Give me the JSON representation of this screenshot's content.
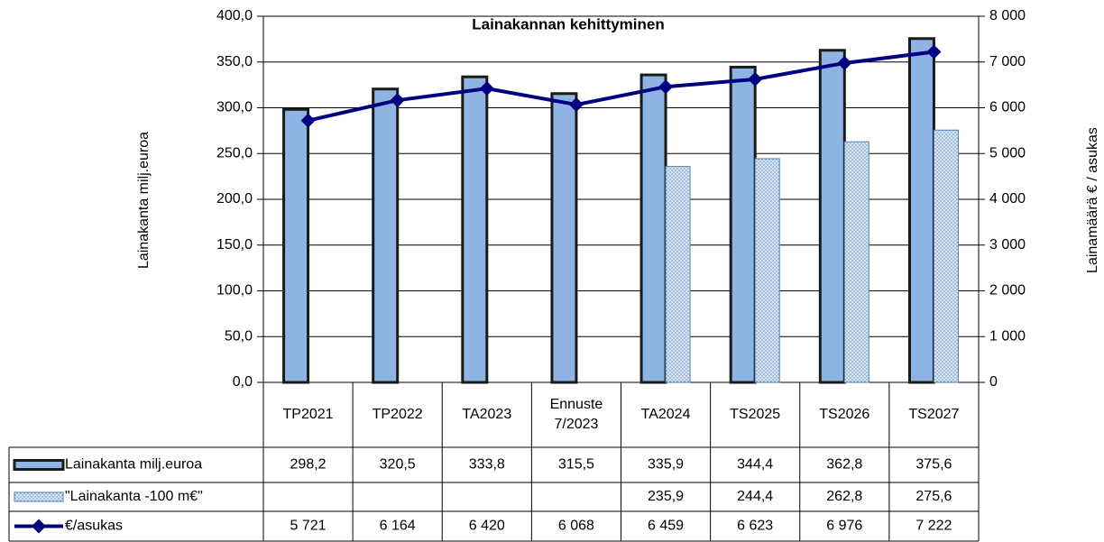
{
  "chart_data": {
    "type": "bar",
    "title": "Lainakannan kehittyminen",
    "y_label": "Lainakanta milj.euroa",
    "y2_label": "Lainamäärä € / asukas",
    "categories": [
      "TP2021",
      "TP2022",
      "TA2023",
      "Ennuste 7/2023",
      "TA2024",
      "TS2025",
      "TS2026",
      "TS2027"
    ],
    "series": [
      {
        "name": "Lainakanta milj.euroa",
        "type": "bar",
        "color": "#8db4e2",
        "values": [
          298.2,
          320.5,
          333.8,
          315.5,
          335.9,
          344.4,
          362.8,
          375.6
        ],
        "value_labels": [
          "298,2",
          "320,5",
          "333,8",
          "315,5",
          "335,9",
          "344,4",
          "362,8",
          "375,6"
        ]
      },
      {
        "name": "\"Lainakanta -100 m€\"",
        "type": "bar",
        "color": "#dbe5f1",
        "values": [
          null,
          null,
          null,
          null,
          235.9,
          244.4,
          262.8,
          275.6
        ],
        "value_labels": [
          null,
          null,
          null,
          null,
          "235,9",
          "244,4",
          "262,8",
          "275,6"
        ]
      },
      {
        "name": "€/asukas",
        "type": "line",
        "axis": "y2",
        "color": "#000080",
        "values": [
          5721,
          6164,
          6420,
          6068,
          6459,
          6623,
          6976,
          7222
        ],
        "value_labels": [
          "5 721",
          "6 164",
          "6 420",
          "6 068",
          "6 459",
          "6 623",
          "6 976",
          "7 222"
        ]
      }
    ],
    "ylim": [
      0,
      400
    ],
    "yticks": [
      {
        "value": 0,
        "label": "0,0"
      },
      {
        "value": 50,
        "label": "50,0"
      },
      {
        "value": 100,
        "label": "100,0"
      },
      {
        "value": 150,
        "label": "150,0"
      },
      {
        "value": 200,
        "label": "200,0"
      },
      {
        "value": 250,
        "label": "250,0"
      },
      {
        "value": 300,
        "label": "300,0"
      },
      {
        "value": 350,
        "label": "350,0"
      },
      {
        "value": 400,
        "label": "400,0"
      }
    ],
    "y2lim": [
      0,
      8000
    ],
    "y2ticks": [
      0,
      {
        "value": 1000,
        "label": "1 000"
      },
      {
        "value": 2000,
        "label": "2 000"
      },
      {
        "value": 3000,
        "label": "3 000"
      },
      {
        "value": 4000,
        "label": "4 000"
      },
      {
        "value": 5000,
        "label": "5 000"
      },
      {
        "value": 6000,
        "label": "6 000"
      },
      {
        "value": 7000,
        "label": "7 000"
      },
      {
        "value": 8000,
        "label": "8 000"
      }
    ],
    "grid": true,
    "data_table": true
  }
}
